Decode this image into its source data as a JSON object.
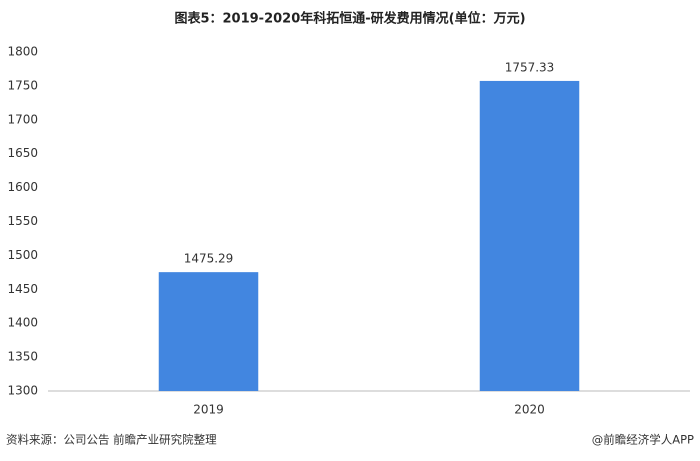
{
  "chart_data": {
    "type": "bar",
    "title": "图表5：2019-2020年科拓恒通-研发费用情况(单位：万元)",
    "categories": [
      "2019",
      "2020"
    ],
    "values": [
      1475.29,
      1757.33
    ],
    "color": "#4286e0",
    "ylim": [
      1300,
      1800
    ],
    "yticks": [
      1300,
      1350,
      1400,
      1450,
      1500,
      1550,
      1600,
      1650,
      1700,
      1750,
      1800
    ],
    "grid": false,
    "source": "资料来源：公司公告 前瞻产业研究院整理",
    "credit": "@前瞻经济学人APP"
  }
}
